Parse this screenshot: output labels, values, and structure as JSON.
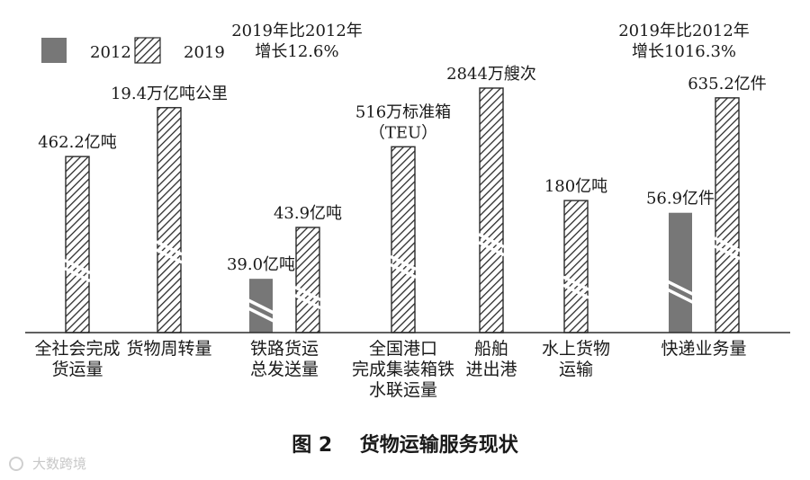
{
  "chart_data": {
    "type": "bar",
    "figure_caption": "图 2    货物运输服务现状",
    "legend": [
      {
        "name": "2012",
        "style": "solid",
        "color": "#777777"
      },
      {
        "name": "2019",
        "style": "hatched",
        "color": "#333333"
      }
    ],
    "legend_position": "top-left",
    "annotations": [
      {
        "lines": [
          "2019年比2012年",
          "增长12.6%"
        ],
        "position": "top-left-center"
      },
      {
        "lines": [
          "2019年比2012年",
          "增长1016.3%"
        ],
        "position": "top-right"
      }
    ],
    "axis_broken": true,
    "gridlines": false,
    "categories": [
      {
        "label_lines": [
          "全社会完成",
          "货运量"
        ],
        "bars": [
          {
            "series": "2019",
            "label": "462.2亿吨",
            "rel_height": 0.72
          }
        ]
      },
      {
        "label_lines": [
          "货物周转量"
        ],
        "bars": [
          {
            "series": "2019",
            "label": "19.4万亿吨公里",
            "rel_height": 0.92
          }
        ]
      },
      {
        "label_lines": [
          "铁路货运",
          "总发送量"
        ],
        "bars": [
          {
            "series": "2012",
            "label": "39.0亿吨",
            "rel_height": 0.22
          },
          {
            "series": "2019",
            "label": "43.9亿吨",
            "rel_height": 0.43
          }
        ]
      },
      {
        "label_lines": [
          "全国港口",
          "完成集装箱铁",
          "水联运量"
        ],
        "bars": [
          {
            "series": "2019",
            "label_lines": [
              "516万标准箱",
              "（TEU）"
            ],
            "rel_height": 0.76
          }
        ]
      },
      {
        "label_lines": [
          "船舶",
          "进出港"
        ],
        "bars": [
          {
            "series": "2019",
            "label": "2844万艘次",
            "rel_height": 1.0
          }
        ]
      },
      {
        "label_lines": [
          "水上货物",
          "运输"
        ],
        "bars": [
          {
            "series": "2019",
            "label": "180亿吨",
            "rel_height": 0.54
          }
        ]
      },
      {
        "label_lines": [
          "快递业务量"
        ],
        "bars": [
          {
            "series": "2012",
            "label": "56.9亿件",
            "rel_height": 0.49
          },
          {
            "series": "2019",
            "label": "635.2亿件",
            "rel_height": 0.96
          }
        ]
      }
    ],
    "watermark": "大数跨境"
  }
}
